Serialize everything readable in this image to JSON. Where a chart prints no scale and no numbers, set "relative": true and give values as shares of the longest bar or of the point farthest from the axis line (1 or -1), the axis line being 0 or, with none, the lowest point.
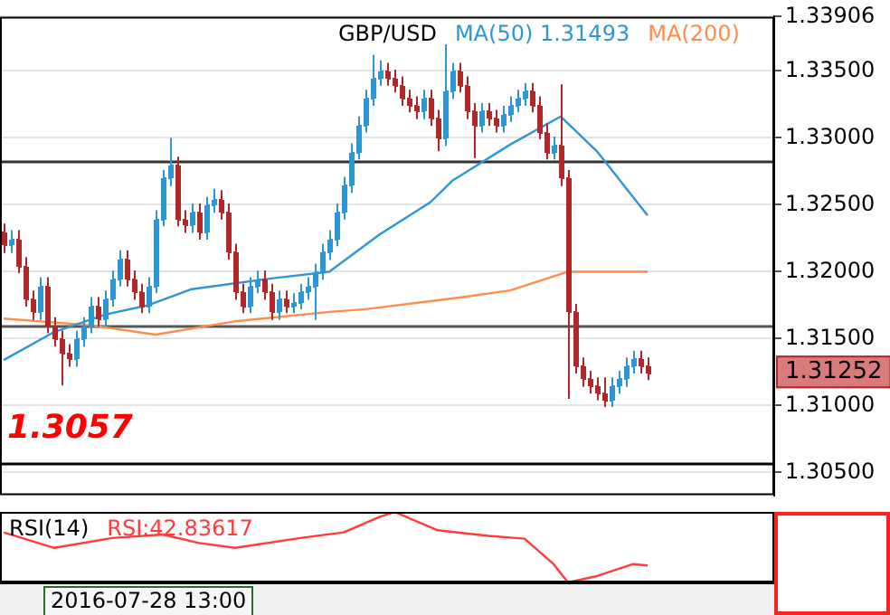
{
  "chart_data": [
    {
      "type": "candlestick",
      "title": "GBP/USD",
      "categories": [
        null,
        null,
        null,
        null,
        null,
        null,
        null,
        null,
        null,
        null,
        null,
        null,
        null,
        null,
        null,
        null,
        null,
        null,
        null,
        null,
        null,
        null,
        null,
        null,
        null,
        null,
        null,
        null,
        null,
        null,
        null,
        null,
        null,
        null,
        null,
        null,
        null,
        null,
        null,
        null,
        null,
        null,
        null,
        null,
        null,
        null,
        null,
        null,
        null,
        null,
        null,
        null,
        null,
        null,
        null,
        null,
        null,
        null,
        null,
        null,
        null,
        null,
        null,
        null,
        null,
        null,
        null,
        null,
        null,
        null,
        null,
        null,
        null,
        null,
        null,
        null,
        null,
        null,
        null,
        null,
        null,
        null,
        null,
        null,
        null,
        null,
        null,
        null,
        null,
        null,
        null,
        null,
        null,
        null,
        null,
        null,
        null,
        null,
        null,
        null,
        null,
        null,
        null,
        null,
        null,
        null,
        null
      ],
      "ohlc": [
        [
          1.323,
          1.3236,
          1.3214,
          1.322
        ],
        [
          1.322,
          1.3231,
          1.3214,
          1.3225
        ],
        [
          1.3225,
          1.3231,
          1.3199,
          1.3205
        ],
        [
          1.3205,
          1.3211,
          1.3174,
          1.318
        ],
        [
          1.318,
          1.3186,
          1.3164,
          1.317
        ],
        [
          1.317,
          1.3196,
          1.3164,
          1.319
        ],
        [
          1.319,
          1.3196,
          1.3154,
          1.316
        ],
        [
          1.316,
          1.3166,
          1.3144,
          1.315
        ],
        [
          1.315,
          1.3156,
          1.3115,
          1.314
        ],
        [
          1.314,
          1.3146,
          1.3129,
          1.3135
        ],
        [
          1.3135,
          1.3156,
          1.3129,
          1.315
        ],
        [
          1.315,
          1.3166,
          1.3144,
          1.316
        ],
        [
          1.316,
          1.3181,
          1.3154,
          1.3175
        ],
        [
          1.3175,
          1.3181,
          1.3159,
          1.3165
        ],
        [
          1.3165,
          1.3186,
          1.3159,
          1.318
        ],
        [
          1.318,
          1.3201,
          1.3174,
          1.3195
        ],
        [
          1.3195,
          1.3216,
          1.3189,
          1.321
        ],
        [
          1.321,
          1.3216,
          1.3189,
          1.3195
        ],
        [
          1.3195,
          1.3201,
          1.3179,
          1.3185
        ],
        [
          1.3185,
          1.3191,
          1.3169,
          1.3175
        ],
        [
          1.3175,
          1.3196,
          1.3169,
          1.319
        ],
        [
          1.319,
          1.3246,
          1.3184,
          1.324
        ],
        [
          1.324,
          1.3276,
          1.3234,
          1.327
        ],
        [
          1.327,
          1.33,
          1.3264,
          1.328
        ],
        [
          1.328,
          1.3286,
          1.3234,
          1.324
        ],
        [
          1.324,
          1.3246,
          1.3229,
          1.3235
        ],
        [
          1.3235,
          1.3251,
          1.3229,
          1.3245
        ],
        [
          1.3245,
          1.3251,
          1.3224,
          1.323
        ],
        [
          1.323,
          1.3256,
          1.3224,
          1.325
        ],
        [
          1.325,
          1.3262,
          1.3244,
          1.3255
        ],
        [
          1.3255,
          1.3261,
          1.3239,
          1.3245
        ],
        [
          1.3245,
          1.3251,
          1.3209,
          1.3215
        ],
        [
          1.3215,
          1.3221,
          1.3179,
          1.3185
        ],
        [
          1.3185,
          1.3191,
          1.3169,
          1.3175
        ],
        [
          1.3175,
          1.3196,
          1.3169,
          1.319
        ],
        [
          1.319,
          1.3201,
          1.3184,
          1.3195
        ],
        [
          1.3195,
          1.3201,
          1.3179,
          1.3185
        ],
        [
          1.3185,
          1.3191,
          1.3164,
          1.317
        ],
        [
          1.317,
          1.3186,
          1.3164,
          1.318
        ],
        [
          1.318,
          1.3186,
          1.3169,
          1.3175
        ],
        [
          1.3175,
          1.3184,
          1.3169,
          1.3178
        ],
        [
          1.3178,
          1.3191,
          1.3172,
          1.3185
        ],
        [
          1.3185,
          1.3196,
          1.3179,
          1.319
        ],
        [
          1.319,
          1.3206,
          1.3164,
          1.32
        ],
        [
          1.32,
          1.3221,
          1.3194,
          1.3215
        ],
        [
          1.3215,
          1.3231,
          1.3209,
          1.3225
        ],
        [
          1.3225,
          1.3251,
          1.3219,
          1.3245
        ],
        [
          1.3245,
          1.3271,
          1.3239,
          1.3265
        ],
        [
          1.3265,
          1.3296,
          1.3259,
          1.329
        ],
        [
          1.329,
          1.3316,
          1.3284,
          1.331
        ],
        [
          1.331,
          1.3336,
          1.3304,
          1.333
        ],
        [
          1.333,
          1.3362,
          1.3324,
          1.3345
        ],
        [
          1.3345,
          1.3358,
          1.3339,
          1.335
        ],
        [
          1.335,
          1.3356,
          1.3339,
          1.3345
        ],
        [
          1.3345,
          1.3351,
          1.3334,
          1.334
        ],
        [
          1.334,
          1.3346,
          1.3324,
          1.333
        ],
        [
          1.333,
          1.3336,
          1.3319,
          1.3325
        ],
        [
          1.3325,
          1.3331,
          1.3314,
          1.332
        ],
        [
          1.332,
          1.3336,
          1.3314,
          1.333
        ],
        [
          1.333,
          1.3336,
          1.3309,
          1.3315
        ],
        [
          1.3315,
          1.3321,
          1.329,
          1.33
        ],
        [
          1.33,
          1.337,
          1.3294,
          1.3335
        ],
        [
          1.3335,
          1.3356,
          1.3329,
          1.335
        ],
        [
          1.335,
          1.3356,
          1.3334,
          1.334
        ],
        [
          1.334,
          1.3346,
          1.3314,
          1.332
        ],
        [
          1.332,
          1.3326,
          1.3285,
          1.331
        ],
        [
          1.331,
          1.3326,
          1.3304,
          1.332
        ],
        [
          1.332,
          1.3326,
          1.3309,
          1.3315
        ],
        [
          1.3315,
          1.3321,
          1.3304,
          1.331
        ],
        [
          1.331,
          1.3324,
          1.3304,
          1.3318
        ],
        [
          1.3318,
          1.3331,
          1.3312,
          1.3325
        ],
        [
          1.3325,
          1.3336,
          1.3319,
          1.333
        ],
        [
          1.333,
          1.3341,
          1.3324,
          1.3335
        ],
        [
          1.3335,
          1.3341,
          1.3319,
          1.3325
        ],
        [
          1.3325,
          1.3331,
          1.3299,
          1.3305
        ],
        [
          1.3305,
          1.3311,
          1.3284,
          1.329
        ],
        [
          1.329,
          1.3301,
          1.3284,
          1.3295
        ],
        [
          1.3295,
          1.334,
          1.3264,
          1.327
        ],
        [
          1.327,
          1.3276,
          1.3105,
          1.317
        ],
        [
          1.317,
          1.3176,
          1.3124,
          1.313
        ],
        [
          1.313,
          1.3136,
          1.3114,
          1.312
        ],
        [
          1.312,
          1.3126,
          1.3109,
          1.3115
        ],
        [
          1.3115,
          1.3121,
          1.3104,
          1.311
        ],
        [
          1.311,
          1.3121,
          1.3099,
          1.3105
        ],
        [
          1.3105,
          1.3121,
          1.3099,
          1.3115
        ],
        [
          1.3115,
          1.3126,
          1.3109,
          1.312
        ],
        [
          1.312,
          1.3136,
          1.3114,
          1.313
        ],
        [
          1.313,
          1.3141,
          1.3124,
          1.3135
        ],
        [
          1.3135,
          1.3141,
          1.3124,
          1.313
        ],
        [
          1.313,
          1.3136,
          1.3119,
          1.31252
        ],
        null,
        null,
        null,
        null,
        null,
        null,
        null,
        null,
        null,
        null,
        null,
        null,
        null,
        null,
        null,
        null,
        null
      ],
      "colors": [
        "#b0272a",
        "#2e96d4",
        "#b0272a",
        "#b0272a",
        "#b0272a",
        "#2e96d4",
        "#b0272a",
        "#b0272a",
        "#b0272a",
        "#b0272a",
        "#2e96d4",
        "#2e96d4",
        "#2e96d4",
        "#b0272a",
        "#2e96d4",
        "#2e96d4",
        "#2e96d4",
        "#b0272a",
        "#b0272a",
        "#b0272a",
        "#2e96d4",
        "#2e96d4",
        "#2e96d4",
        "#2e96d4",
        "#b0272a",
        "#b0272a",
        "#2e96d4",
        "#b0272a",
        "#2e96d4",
        "#2e96d4",
        "#b0272a",
        "#b0272a",
        "#b0272a",
        "#b0272a",
        "#2e96d4",
        "#2e96d4",
        "#b0272a",
        "#b0272a",
        "#2e96d4",
        "#b0272a",
        "#2e96d4",
        "#2e96d4",
        "#2e96d4",
        "#2e96d4",
        "#2e96d4",
        "#2e96d4",
        "#2e96d4",
        "#2e96d4",
        "#2e96d4",
        "#2e96d4",
        "#2e96d4",
        "#2e96d4",
        "#2e96d4",
        "#b0272a",
        "#b0272a",
        "#b0272a",
        "#b0272a",
        "#b0272a",
        "#2e96d4",
        "#b0272a",
        "#b0272a",
        "#2e96d4",
        "#2e96d4",
        "#b0272a",
        "#b0272a",
        "#b0272a",
        "#2e96d4",
        "#b0272a",
        "#b0272a",
        "#2e96d4",
        "#2e96d4",
        "#2e96d4",
        "#2e96d4",
        "#b0272a",
        "#b0272a",
        "#b0272a",
        "#2e96d4",
        "#b0272a",
        "#b0272a",
        "#b0272a",
        "#b0272a",
        "#b0272a",
        "#b0272a",
        "#b0272a",
        "#2e96d4",
        "#2e96d4",
        "#2e96d4",
        "#2e96d4",
        "#b0272a",
        "#b0272a",
        null,
        null,
        null,
        null,
        null,
        null,
        null,
        null,
        null,
        null,
        null,
        null,
        null,
        null,
        null,
        null,
        null
      ],
      "series": [
        {
          "name": "MA(50) 1.31493",
          "type": "line",
          "color": "#2e96d4",
          "values": [
            1.3134,
            null,
            null,
            null,
            null,
            null,
            null,
            1.3155,
            null,
            null,
            null,
            null,
            null,
            null,
            1.3168,
            null,
            null,
            null,
            null,
            null,
            1.3175,
            null,
            null,
            null,
            null,
            null,
            1.3187,
            null,
            null,
            null,
            null,
            null,
            null,
            null,
            null,
            null,
            null,
            1.3195,
            null,
            null,
            null,
            null,
            null,
            null,
            null,
            1.32,
            null,
            null,
            null,
            null,
            null,
            null,
            1.3228,
            null,
            null,
            null,
            null,
            null,
            null,
            1.3252,
            null,
            null,
            1.3268,
            null,
            null,
            null,
            null,
            null,
            null,
            null,
            1.3295,
            null,
            null,
            null,
            null,
            null,
            null,
            1.3316,
            null,
            null,
            null,
            null,
            1.329,
            null,
            null,
            null,
            null,
            null,
            null,
            1.3242,
            null,
            null,
            null,
            null,
            null,
            null,
            null,
            null,
            null,
            null,
            null,
            null,
            null,
            null,
            null,
            null,
            null
          ]
        },
        {
          "name": "MA(200)",
          "type": "line",
          "color": "#ff8c4a",
          "values": [
            1.3165,
            null,
            null,
            null,
            null,
            null,
            null,
            null,
            null,
            null,
            null,
            null,
            1.316,
            null,
            null,
            null,
            null,
            null,
            null,
            null,
            null,
            1.3153,
            null,
            null,
            null,
            null,
            null,
            null,
            null,
            null,
            null,
            null,
            1.3163,
            null,
            null,
            null,
            null,
            null,
            null,
            null,
            null,
            null,
            null,
            null,
            null,
            1.317,
            null,
            null,
            null,
            null,
            1.3172,
            null,
            null,
            null,
            null,
            null,
            null,
            null,
            null,
            null,
            null,
            null,
            1.318,
            null,
            null,
            null,
            null,
            null,
            null,
            null,
            1.3186,
            null,
            null,
            null,
            null,
            null,
            null,
            null,
            1.32,
            null,
            null,
            null,
            null,
            null,
            null,
            null,
            null,
            null,
            null,
            1.32,
            null,
            null,
            null,
            null,
            null,
            null,
            null,
            null,
            null,
            null,
            null,
            null,
            null,
            null,
            null,
            null,
            null
          ]
        }
      ],
      "ylim": [
        1.3033,
        1.33906
      ],
      "yticks": [
        {
          "value": 1.305,
          "label": "1.30500"
        },
        {
          "value": 1.31,
          "label": "1.31000"
        },
        {
          "value": 1.315,
          "label": "1.31500"
        },
        {
          "value": 1.32,
          "label": "1.32000"
        },
        {
          "value": 1.325,
          "label": "1.32500"
        },
        {
          "value": 1.33,
          "label": "1.33000"
        },
        {
          "value": 1.335,
          "label": "1.33500"
        },
        {
          "value": 1.33906,
          "label": "1.33906"
        }
      ],
      "ref_lines": [
        {
          "axis": "y",
          "value": 1.3283,
          "color": "#333333"
        },
        {
          "axis": "y",
          "value": 1.316,
          "color": "#555555"
        },
        {
          "axis": "y",
          "value": 1.3057,
          "color": "#000000",
          "label": "1.3057"
        }
      ],
      "annotations": [
        "1.31252"
      ],
      "grid": "y",
      "legend": "top",
      "tick_labels": "y"
    },
    {
      "type": "line",
      "title": "RSI(14)",
      "relative": true,
      "tick_labels": false,
      "categories": [
        null,
        null,
        null,
        null,
        null,
        null,
        null,
        null,
        null,
        null,
        null,
        null,
        null,
        null,
        null,
        null,
        null,
        null,
        null,
        null,
        null,
        null,
        null,
        null,
        null,
        null,
        null,
        null,
        null,
        null,
        null,
        null,
        null,
        null,
        null,
        null,
        null,
        null,
        null,
        null,
        null,
        null,
        null,
        null,
        null,
        null,
        null,
        null,
        null,
        null,
        null,
        null,
        null,
        null,
        null,
        null,
        null,
        null,
        null,
        null,
        null,
        null,
        null,
        null,
        null,
        null,
        null,
        null,
        null,
        null,
        null,
        null,
        null,
        null,
        null,
        null,
        null,
        null,
        null,
        null,
        null,
        null,
        null,
        null,
        null,
        null,
        null,
        null,
        null,
        null,
        null,
        null,
        null,
        null,
        null,
        null,
        null,
        null,
        null,
        null,
        null,
        null,
        null,
        null,
        null,
        null,
        null
      ],
      "series": [
        {
          "color": "#ff3b3b",
          "values": [
            0.71,
            null,
            null,
            null,
            null,
            null,
            null,
            0.49,
            null,
            null,
            null,
            null,
            null,
            null,
            null,
            0.63,
            null,
            null,
            null,
            null,
            null,
            null,
            0.68,
            null,
            null,
            null,
            null,
            0.56,
            null,
            null,
            null,
            null,
            0.49,
            null,
            null,
            null,
            null,
            null,
            null,
            null,
            null,
            0.63,
            null,
            null,
            null,
            null,
            null,
            0.71,
            null,
            null,
            null,
            null,
            0.93,
            null,
            1.0,
            null,
            null,
            null,
            null,
            null,
            0.74,
            null,
            null,
            null,
            null,
            null,
            null,
            0.66,
            null,
            null,
            null,
            null,
            0.62,
            null,
            null,
            null,
            0.26,
            null,
            0.0,
            null,
            null,
            null,
            0.09,
            null,
            null,
            null,
            null,
            0.26,
            null,
            0.24,
            null,
            null,
            null,
            null,
            null,
            null,
            null,
            null,
            null,
            null,
            null,
            null,
            null,
            null,
            null,
            null,
            null
          ]
        }
      ],
      "annotations": [
        "RSI:42.83617",
        "2016-07-28 13:00"
      ]
    }
  ]
}
